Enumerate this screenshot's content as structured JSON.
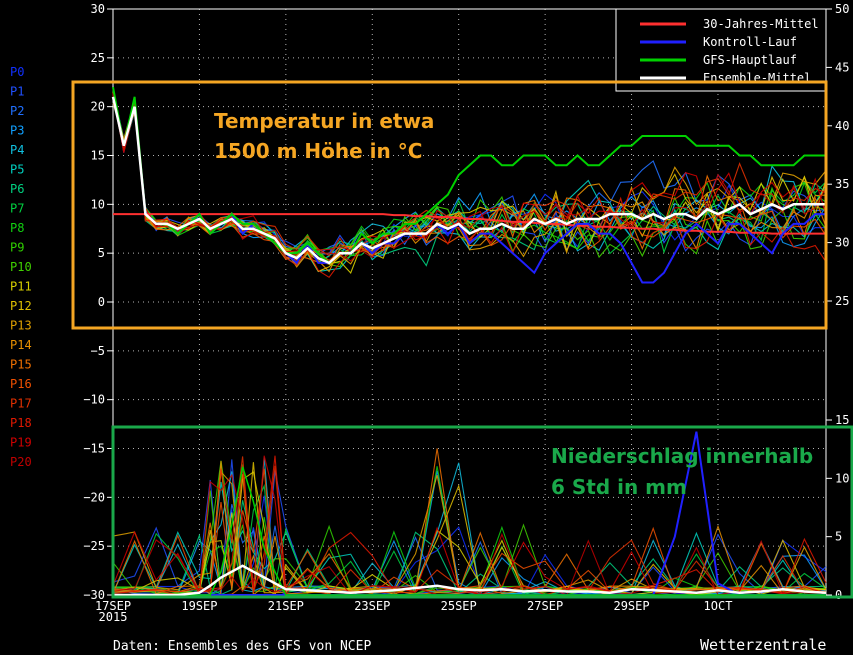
{
  "chart_data": {
    "type": "line",
    "x_labels": [
      "17SEP\n2015",
      "19SEP",
      "21SEP",
      "23SEP",
      "25SEP",
      "27SEP",
      "29SEP",
      "1OCT"
    ],
    "left_axis_ticks": [
      "30",
      "25",
      "20",
      "15",
      "10",
      "5",
      "0",
      "−5",
      "−10",
      "−15",
      "−20",
      "−25",
      "−30"
    ],
    "right_axis_upper_ticks": [
      "50",
      "45",
      "40",
      "35",
      "30",
      "25"
    ],
    "right_axis_lower_ticks": [
      "15",
      "10",
      "5",
      "0"
    ],
    "legend": [
      "30-Jahres-Mittel",
      "Kontroll-Lauf",
      "GFS-Hauptlauf",
      "Ensemble-Mittel"
    ],
    "legend_colors": [
      "#ff3030",
      "#2020ff",
      "#00d000",
      "#ffffff"
    ],
    "members": [
      "P0",
      "P1",
      "P2",
      "P3",
      "P4",
      "P5",
      "P6",
      "P7",
      "P8",
      "P9",
      "P10",
      "P11",
      "P12",
      "P13",
      "P14",
      "P15",
      "P16",
      "P17",
      "P18",
      "P19",
      "P20"
    ],
    "member_colors": [
      "#1030ff",
      "#2050ff",
      "#2070ff",
      "#10a0ff",
      "#10c0e0",
      "#00d0c0",
      "#00d080",
      "#00d040",
      "#10d010",
      "#30d000",
      "#40d000",
      "#d8d000",
      "#e0c000",
      "#e0a000",
      "#e89000",
      "#f07000",
      "#f05000",
      "#e03000",
      "#e01800",
      "#d00000",
      "#c00000"
    ],
    "temperature_1500m_c": {
      "x_days": [
        0,
        0.25,
        0.5,
        0.75,
        1,
        1.25,
        1.5,
        1.75,
        2,
        2.25,
        2.5,
        2.75,
        3,
        3.25,
        3.5,
        3.75,
        4,
        4.25,
        4.5,
        4.75,
        5,
        5.25,
        5.5,
        5.75,
        6,
        6.25,
        6.5,
        6.75,
        7,
        7.25,
        7.5,
        7.75,
        8,
        8.25,
        8.5,
        8.75,
        9,
        9.25,
        9.5,
        9.75,
        10,
        10.25,
        10.5,
        10.75,
        11,
        11.25,
        11.5,
        11.75,
        12,
        12.25,
        12.5,
        12.75,
        13,
        13.25,
        13.5,
        13.75,
        14,
        14.25,
        14.5,
        14.75,
        15,
        15.25,
        15.5,
        15.75,
        16,
        16.25,
        16.5
      ],
      "ensemble_mean": [
        21,
        16,
        20,
        9,
        8,
        8,
        7.5,
        8,
        8.5,
        7.5,
        8,
        8.5,
        7.5,
        7.5,
        7,
        6.5,
        5,
        4.5,
        5.5,
        4.5,
        4,
        5,
        5,
        6,
        5.5,
        6,
        6.5,
        7,
        7,
        7,
        8,
        7.5,
        8,
        7,
        7.5,
        7.5,
        8,
        7.5,
        7.5,
        8.5,
        8,
        8.5,
        8,
        8.5,
        8.5,
        8.5,
        9,
        9,
        9,
        8.5,
        9,
        8.5,
        9,
        9,
        8.5,
        9.5,
        9,
        9.5,
        10,
        9,
        9.5,
        10,
        9.5,
        10,
        10,
        10,
        10
      ],
      "control_run": [
        21,
        16,
        20,
        9,
        8,
        8,
        7,
        8,
        9,
        7,
        8,
        9,
        7,
        8,
        7,
        6,
        5,
        4,
        6,
        4,
        4,
        5,
        5,
        6,
        5,
        6,
        6,
        7,
        7,
        7,
        8,
        7,
        8,
        6,
        7,
        7,
        6,
        5,
        4,
        3,
        5,
        6,
        7,
        8,
        8,
        7,
        7,
        6,
        4,
        2,
        2,
        3,
        5,
        7,
        8,
        7,
        6,
        8,
        8,
        7,
        6,
        5,
        7,
        8,
        8,
        9,
        9
      ],
      "gfs_main_run": [
        22,
        16,
        21,
        9,
        8,
        8,
        7,
        8,
        9,
        7,
        8,
        9,
        8,
        8,
        7,
        6,
        5,
        5,
        6,
        5,
        4,
        5,
        5,
        7,
        6,
        7,
        7,
        8,
        8,
        9,
        10,
        11,
        13,
        14,
        15,
        15,
        14,
        14,
        15,
        15,
        15,
        14,
        14,
        15,
        14,
        14,
        15,
        16,
        16,
        17,
        17,
        17,
        17,
        17,
        16,
        16,
        16,
        16,
        15,
        15,
        14,
        14,
        14,
        14,
        15,
        15,
        15
      ],
      "climate_mean_30y": [
        9,
        9,
        9,
        9,
        9,
        9,
        9,
        9,
        9,
        9,
        9,
        9,
        9,
        9,
        9,
        9,
        9,
        9,
        9,
        9,
        9,
        9,
        9,
        9,
        9,
        9,
        8.9,
        8.9,
        8.8,
        8.8,
        8.7,
        8.7,
        8.6,
        8.5,
        8.5,
        8.4,
        8.3,
        8.2,
        8.2,
        8.1,
        8,
        8,
        7.9,
        7.8,
        7.8,
        7.7,
        7.7,
        7.6,
        7.6,
        7.5,
        7.5,
        7.4,
        7.4,
        7.3,
        7.3,
        7.2,
        7.2,
        7.2,
        7.1,
        7.1,
        7.1,
        7,
        7,
        7,
        7,
        7,
        7
      ]
    },
    "precipitation_6h_mm": {
      "x_days": [
        0,
        0.5,
        1,
        1.5,
        2,
        2.25,
        2.5,
        2.75,
        3,
        3.25,
        3.5,
        3.75,
        4,
        4.5,
        5,
        5.5,
        6,
        6.5,
        7,
        7.5,
        8,
        8.5,
        9,
        9.5,
        10,
        10.5,
        11,
        11.5,
        12,
        12.5,
        13,
        13.5,
        14,
        14.5,
        15,
        15.5,
        16,
        16.5
      ],
      "ensemble_mean": [
        0,
        0,
        0,
        0,
        0.2,
        0.8,
        1.5,
        2,
        2.5,
        2,
        1.5,
        1,
        0.5,
        0.4,
        0.3,
        0.2,
        0.3,
        0.4,
        0.6,
        0.8,
        0.5,
        0.4,
        0.5,
        0.3,
        0.4,
        0.3,
        0.3,
        0.2,
        0.5,
        0.4,
        0.3,
        0.2,
        0.4,
        0.2,
        0.3,
        0.5,
        0.3,
        0.2
      ],
      "control_run": [
        0,
        0,
        0,
        0,
        0,
        0,
        0,
        0,
        0,
        0,
        0,
        0,
        0,
        0,
        0,
        0,
        0,
        0,
        0,
        0,
        0,
        0,
        0,
        0,
        0,
        0,
        0,
        0,
        0,
        0,
        5,
        14,
        1,
        0,
        0,
        0,
        0,
        0
      ],
      "gfs_main_run": [
        0,
        0,
        0,
        0,
        0,
        0,
        2,
        6,
        11,
        8,
        4,
        2,
        0,
        0,
        0,
        0,
        0,
        0,
        0,
        0,
        0,
        0,
        0,
        0,
        0,
        0,
        0,
        0,
        0,
        0,
        0,
        0,
        0,
        0,
        0,
        0,
        0,
        0
      ]
    },
    "left_axis_range": [
      -30,
      30
    ],
    "right_axis_upper_range": [
      25,
      50
    ],
    "right_axis_lower_range": [
      0,
      15
    ],
    "grid": true,
    "legend_position": "top-right"
  },
  "annotations": {
    "temp_box_line1": "Temperatur in etwa",
    "temp_box_line2": "1500 m Höhe in °C",
    "precip_box_line1": "Niederschlag innerhalb",
    "precip_box_line2": "6 Std in mm",
    "temp_box_color": "#f5a623",
    "precip_box_color": "#1aa84a"
  },
  "footer": {
    "source": "Daten: Ensembles des GFS von NCEP",
    "brand": "Wetterzentrale"
  }
}
